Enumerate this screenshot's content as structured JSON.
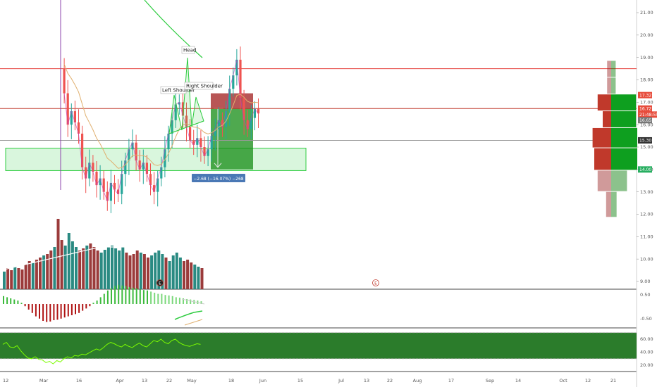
{
  "chart_data": {
    "type": "candlestick",
    "price_axis": {
      "ticks": [
        "21.00",
        "20.00",
        "19.00",
        "18.00",
        "17.00",
        "16.00",
        "15.00",
        "14.00",
        "13.00",
        "12.00",
        "11.00",
        "10.00",
        "9.00"
      ],
      "range": [
        8.5,
        21.6
      ]
    },
    "oscillator_axis": {
      "ticks": [
        "0.50",
        "-0.50"
      ]
    },
    "rsi_axis": {
      "ticks": [
        "60.00",
        "40.00",
        "20.00"
      ]
    },
    "time_axis": {
      "ticks": [
        "12",
        "Mar",
        "16",
        "Apr",
        "13",
        "22",
        "May",
        "18",
        "Jun",
        "15",
        "Jul",
        "13",
        "22",
        "Aug",
        "17",
        "Sep",
        "14",
        "Oct",
        "12",
        "21"
      ]
    },
    "price_tags": [
      {
        "label": "17.32",
        "value": 17.32,
        "color": "#e74c3c"
      },
      {
        "label": "16.72",
        "value": 16.72,
        "color": "#e74c3c"
      },
      {
        "label": "21:48:55",
        "value": 16.45,
        "color": "#e74c3c"
      },
      {
        "label": "16.65",
        "value": 16.2,
        "color": "#777777"
      },
      {
        "label": "15.30",
        "value": 15.3,
        "color": "#333333"
      },
      {
        "label": "14.00",
        "value": 14.0,
        "color": "#27ae60"
      }
    ],
    "horizontal_lines": [
      {
        "value": 18.5,
        "color": "#e53935"
      },
      {
        "value": 16.72,
        "color": "#c0392b"
      },
      {
        "value": 15.3,
        "color": "#999999"
      }
    ],
    "support_zone": {
      "top": 14.95,
      "bottom": 13.95
    },
    "position": {
      "entry": 16.72,
      "stop": 17.4,
      "target": 14.0
    },
    "measure_label": "−2.68 (−16.07%) −268",
    "annotations": [
      "Head",
      "Left Shoulder",
      "Right Shoulder"
    ],
    "earnings_markers": [
      "E",
      "E"
    ],
    "closes": [
      18.5,
      17.4,
      16.0,
      16.6,
      16.1,
      15.6,
      14.1,
      13.6,
      14.3,
      13.9,
      13.3,
      13.6,
      13.0,
      12.6,
      13.4,
      13.1,
      12.9,
      13.8,
      14.4,
      14.9,
      15.2,
      14.4,
      14.0,
      14.3,
      13.8,
      13.3,
      13.0,
      13.6,
      14.1,
      14.9,
      15.6,
      16.2,
      16.9,
      17.0,
      16.4,
      15.9,
      15.3,
      15.1,
      15.4,
      15.0,
      14.6,
      14.9,
      15.5,
      15.8,
      16.2,
      15.9,
      16.6,
      17.6,
      18.2,
      18.9,
      17.2,
      16.2,
      15.8,
      16.3,
      16.7,
      16.5
    ],
    "volumes": [
      0.25,
      0.3,
      0.27,
      0.32,
      0.3,
      0.28,
      0.35,
      0.4,
      0.38,
      0.42,
      0.45,
      0.48,
      0.5,
      0.55,
      0.6,
      1.0,
      0.7,
      0.62,
      0.8,
      0.68,
      0.6,
      0.55,
      0.58,
      0.62,
      0.65,
      0.6,
      0.55,
      0.52,
      0.56,
      0.6,
      0.62,
      0.58,
      0.55,
      0.6,
      0.52,
      0.48,
      0.5,
      0.55,
      0.52,
      0.5,
      0.45,
      0.48,
      0.52,
      0.55,
      0.5,
      0.45,
      0.4,
      0.48,
      0.52,
      0.45,
      0.4,
      0.42,
      0.38,
      0.35,
      0.32,
      0.3
    ],
    "histogram": [
      0.35,
      0.3,
      0.25,
      0.2,
      0.15,
      0.05,
      -0.1,
      -0.25,
      -0.4,
      -0.55,
      -0.65,
      -0.75,
      -0.8,
      -0.78,
      -0.72,
      -0.7,
      -0.65,
      -0.6,
      -0.55,
      -0.5,
      -0.45,
      -0.4,
      -0.3,
      -0.2,
      -0.1,
      0.05,
      0.15,
      0.3,
      0.45,
      0.6,
      0.7,
      0.8,
      0.85,
      0.82,
      0.8,
      0.75,
      0.72,
      0.7,
      0.65,
      0.62,
      0.6,
      0.55,
      0.5,
      0.45,
      0.45,
      0.4,
      0.38,
      0.35,
      0.3,
      0.28,
      0.25,
      0.22,
      0.2,
      0.18,
      0.15,
      0.12
    ],
    "rsi": [
      52,
      55,
      48,
      47,
      50,
      42,
      36,
      31,
      30,
      33,
      29,
      28,
      24,
      26,
      22,
      27,
      25,
      30,
      33,
      31,
      35,
      34,
      37,
      36,
      39,
      42,
      45,
      43,
      47,
      52,
      55,
      53,
      50,
      48,
      52,
      49,
      47,
      51,
      54,
      50,
      48,
      53,
      58,
      56,
      60,
      55,
      53,
      58,
      60,
      55,
      52,
      50,
      49,
      51,
      53,
      52
    ],
    "volume_profile": [
      {
        "top": 18.85,
        "bottom": 18.1,
        "up": 0.1,
        "down": 0.12
      },
      {
        "top": 18.1,
        "bottom": 17.35,
        "up": 0.1,
        "down": 0.12
      },
      {
        "top": 17.35,
        "bottom": 16.6,
        "up": 0.55,
        "down": 0.4
      },
      {
        "top": 16.6,
        "bottom": 15.85,
        "up": 0.55,
        "down": 0.25
      },
      {
        "top": 15.85,
        "bottom": 14.95,
        "up": 0.65,
        "down": 0.55
      },
      {
        "top": 14.95,
        "bottom": 13.95,
        "up": 0.65,
        "down": 0.5
      },
      {
        "top": 13.95,
        "bottom": 13.0,
        "up": 0.35,
        "down": 0.4
      },
      {
        "top": 13.0,
        "bottom": 11.85,
        "up": 0.12,
        "down": 0.15
      }
    ]
  }
}
